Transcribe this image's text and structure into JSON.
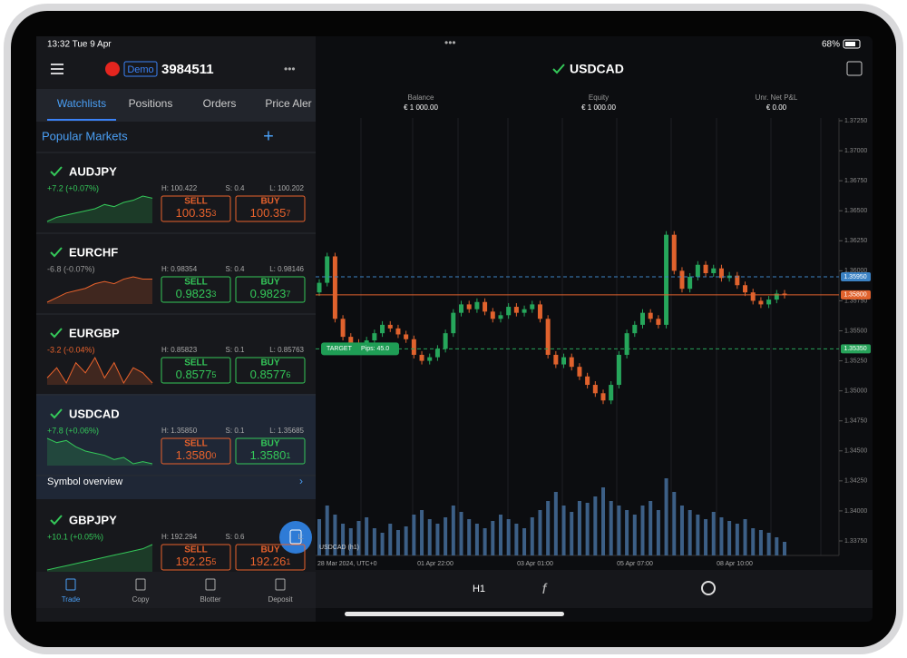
{
  "status": {
    "time": "13:32  Tue 9 Apr",
    "battery": "68%"
  },
  "account": {
    "mode": "Demo",
    "number": "3984511"
  },
  "symbol": "USDCAD",
  "tabs": [
    "Watchlists",
    "Positions",
    "Orders",
    "Price Aler"
  ],
  "list_title": "Popular Markets",
  "summary": [
    {
      "label": "Balance",
      "value": "€ 1 000.00"
    },
    {
      "label": "Equity",
      "value": "€ 1 000.00"
    },
    {
      "label": "Unr. Net P&L",
      "value": "€ 0.00"
    }
  ],
  "watchlist": [
    {
      "name": "AUDJPY",
      "change": "+7.2 (+0.07%)",
      "trend": "up",
      "high": "H: 100.422",
      "spread": "S: 0.4",
      "low": "L: 100.202",
      "sell": {
        "label": "SELL",
        "big": "100.35",
        "small": "3",
        "dir": "down"
      },
      "buy": {
        "label": "BUY",
        "big": "100.35",
        "small": "7",
        "dir": "down"
      },
      "spark": [
        2,
        3,
        3.5,
        4,
        4.5,
        5,
        6,
        5.5,
        6.5,
        7,
        8,
        7.5
      ]
    },
    {
      "name": "EURCHF",
      "change": "-6.8 (-0.07%)",
      "trend": "flat",
      "high": "H: 0.98354",
      "spread": "S: 0.4",
      "low": "L: 0.98146",
      "sell": {
        "label": "SELL",
        "big": "0.9823",
        "small": "3",
        "dir": "up"
      },
      "buy": {
        "label": "BUY",
        "big": "0.9823",
        "small": "7",
        "dir": "up"
      },
      "spark": [
        2,
        3,
        4,
        4.5,
        5,
        6,
        6.5,
        6,
        7,
        7.5,
        7,
        7
      ]
    },
    {
      "name": "EURGBP",
      "change": "-3.2 (-0.04%)",
      "trend": "down",
      "high": "H: 0.85823",
      "spread": "S: 0.1",
      "low": "L: 0.85763",
      "sell": {
        "label": "SELL",
        "big": "0.8577",
        "small": "5",
        "dir": "up"
      },
      "buy": {
        "label": "BUY",
        "big": "0.8577",
        "small": "6",
        "dir": "up"
      },
      "spark": [
        4,
        6,
        3,
        7,
        5,
        8,
        4,
        7,
        3,
        6,
        5,
        3
      ]
    },
    {
      "name": "USDCAD",
      "change": "+7.8 (+0.06%)",
      "trend": "up",
      "high": "H: 1.35850",
      "spread": "S: 0.1",
      "low": "L: 1.35685",
      "sell": {
        "label": "SELL",
        "big": "1.3580",
        "small": "0",
        "dir": "down"
      },
      "buy": {
        "label": "BUY",
        "big": "1.3580",
        "small": "1",
        "dir": "up"
      },
      "spark": [
        8,
        7,
        7.5,
        6,
        5,
        4.5,
        4,
        3,
        3.5,
        2,
        2.5,
        2
      ]
    },
    {
      "name": "GBPJPY",
      "change": "+10.1 (+0.05%)",
      "trend": "up",
      "high": "H: 192.294",
      "spread": "S: 0.6",
      "low": "L:",
      "sell": {
        "label": "SELL",
        "big": "192.25",
        "small": "5",
        "dir": "down"
      },
      "buy": {
        "label": "BUY",
        "big": "192.26",
        "small": "1",
        "dir": "down"
      },
      "spark": [
        2,
        2.5,
        3,
        3.5,
        4,
        4.5,
        5,
        5.5,
        6,
        6.5,
        7,
        8
      ]
    }
  ],
  "symbol_overview": "Symbol overview",
  "nav": [
    "Trade",
    "Copy",
    "Blotter",
    "Deposit"
  ],
  "chart": {
    "legend": "USDCAD (h1)",
    "timeframe": "H1",
    "ylim": [
      1.3375,
      1.3725
    ],
    "yticks": [
      {
        "value": 1.3725,
        "label": "1.37250"
      },
      {
        "value": 1.37,
        "label": "1.37000"
      },
      {
        "value": 1.3675,
        "label": "1.36750"
      },
      {
        "value": 1.365,
        "label": "1.36500"
      },
      {
        "value": 1.3625,
        "label": "1.36250"
      },
      {
        "value": 1.36,
        "label": "1.36000"
      },
      {
        "value": 1.3575,
        "label": "1.35750"
      },
      {
        "value": 1.355,
        "label": "1.35500"
      },
      {
        "value": 1.3525,
        "label": "1.35250"
      },
      {
        "value": 1.35,
        "label": "1.35000"
      },
      {
        "value": 1.3475,
        "label": "1.34750"
      },
      {
        "value": 1.345,
        "label": "1.34500"
      },
      {
        "value": 1.3425,
        "label": "1.34250"
      },
      {
        "value": 1.34,
        "label": "1.34000"
      },
      {
        "value": 1.3375,
        "label": "1.33750"
      }
    ],
    "xlabels": [
      "28 Mar 2024, UTC+0",
      "01 Apr 22:00",
      "03 Apr 01:00",
      "05 Apr 07:00",
      "08 Apr 10:00"
    ],
    "price_lines": [
      {
        "value": 1.3595,
        "label": "1.35950",
        "color": "#3b82c4",
        "dashed": true
      },
      {
        "value": 1.358,
        "label": "1.35800",
        "color": "#e0622d",
        "dashed": false
      },
      {
        "value": 1.3535,
        "label": "1.35350",
        "color": "#27a35a",
        "dashed": true
      }
    ],
    "target": {
      "label": "TARGET",
      "pips": "Pips: 45.0"
    },
    "first_open": 1.3582,
    "closes": [
      1.359,
      1.3612,
      1.356,
      1.3545,
      1.354,
      1.3538,
      1.3542,
      1.3548,
      1.3555,
      1.3552,
      1.3547,
      1.3543,
      1.353,
      1.3525,
      1.3528,
      1.3535,
      1.3548,
      1.3565,
      1.3572,
      1.3568,
      1.3574,
      1.3566,
      1.356,
      1.3563,
      1.357,
      1.3565,
      1.3568,
      1.3572,
      1.356,
      1.353,
      1.3522,
      1.3528,
      1.352,
      1.3512,
      1.3505,
      1.3498,
      1.3492,
      1.3505,
      1.353,
      1.3548,
      1.3555,
      1.3565,
      1.356,
      1.3555,
      1.363,
      1.36,
      1.3585,
      1.3595,
      1.3605,
      1.3598,
      1.3602,
      1.3594,
      1.3596,
      1.3588,
      1.3582,
      1.3575,
      1.3572,
      1.3576,
      1.3581,
      1.358
    ],
    "volumes": [
      40,
      55,
      45,
      35,
      30,
      38,
      42,
      30,
      25,
      35,
      28,
      32,
      45,
      50,
      40,
      35,
      42,
      55,
      48,
      40,
      35,
      30,
      38,
      45,
      40,
      35,
      30,
      42,
      50,
      60,
      70,
      55,
      48,
      60,
      58,
      65,
      75,
      60,
      55,
      50,
      45,
      55,
      60,
      50,
      85,
      70,
      55,
      50,
      45,
      40,
      48,
      42,
      38,
      35,
      40,
      30,
      28,
      25,
      20,
      15
    ],
    "up_color": "#26a65b",
    "down_color": "#e0622d",
    "volume_color": "#3c5f86"
  }
}
